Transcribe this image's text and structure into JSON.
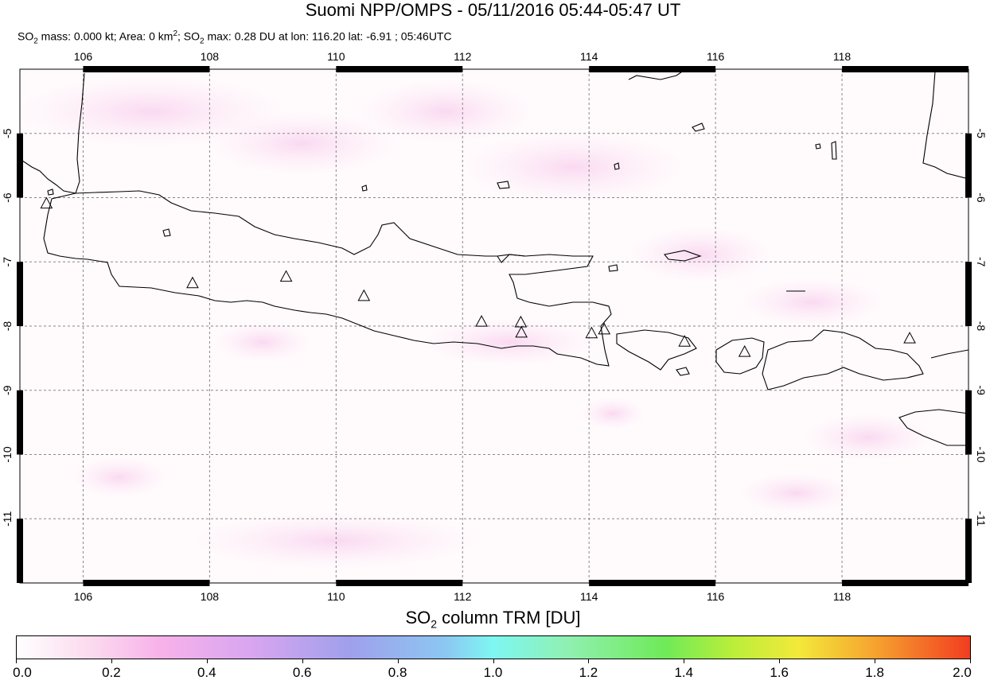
{
  "title": "Suomi NPP/OMPS - 05/11/2016 05:44-05:47 UT",
  "subtitle": {
    "so2_prefix": "SO",
    "sub2": "2",
    "mass_text": " mass: 0.000 kt; Area: 0 km",
    "sup2": "2",
    "sep": "; SO",
    "sub2b": "2",
    "max_text": " max: 0.28 DU at lon: 116.20 lat: -6.91 ; 05:46UTC"
  },
  "map": {
    "lon_range": [
      105,
      120
    ],
    "lat_range": [
      -12,
      -4
    ],
    "lon_ticks": [
      "106",
      "108",
      "110",
      "112",
      "114",
      "116",
      "118"
    ],
    "lat_ticks": [
      "-5",
      "-6",
      "-7",
      "-8",
      "-9",
      "-10",
      "-11"
    ],
    "volcanoes": [
      {
        "lon": 105.42,
        "lat": -6.1
      },
      {
        "lon": 107.73,
        "lat": -7.34
      },
      {
        "lon": 109.21,
        "lat": -7.24
      },
      {
        "lon": 110.44,
        "lat": -7.54
      },
      {
        "lon": 112.3,
        "lat": -7.94
      },
      {
        "lon": 112.92,
        "lat": -7.95
      },
      {
        "lon": 112.93,
        "lat": -8.11
      },
      {
        "lon": 114.04,
        "lat": -8.12
      },
      {
        "lon": 114.24,
        "lat": -8.06
      },
      {
        "lon": 115.51,
        "lat": -8.25
      },
      {
        "lon": 116.46,
        "lat": -8.41
      },
      {
        "lon": 119.07,
        "lat": -8.2
      }
    ]
  },
  "colorbar": {
    "title_prefix": "SO",
    "title_sub": "2",
    "title_suffix": " column TRM [DU]",
    "tick_labels": [
      "0.0",
      "0.2",
      "0.4",
      "0.6",
      "0.8",
      "1.0",
      "1.2",
      "1.4",
      "1.6",
      "1.8",
      "2.0"
    ]
  }
}
